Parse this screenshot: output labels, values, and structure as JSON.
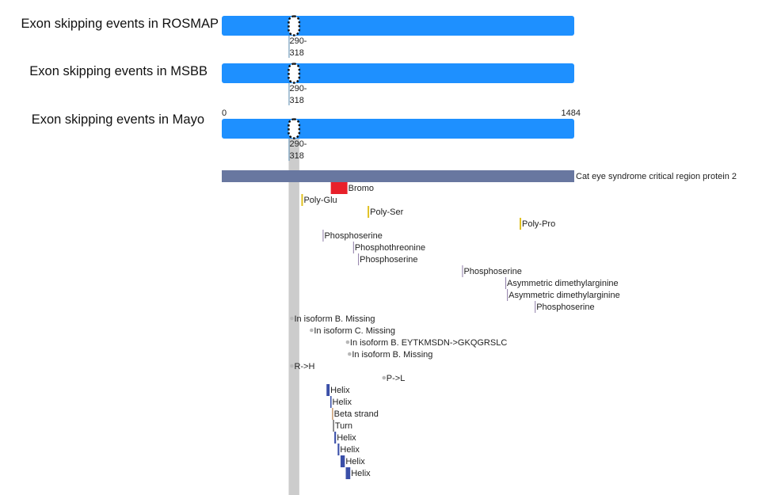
{
  "tracks": [
    {
      "title": "Exon skipping events in ROSMAP",
      "event": {
        "start": 290,
        "end": 318,
        "label_top": "290-",
        "label_bottom": "318"
      }
    },
    {
      "title": "Exon skipping events in MSBB",
      "event": {
        "start": 290,
        "end": 318,
        "label_top": "290-",
        "label_bottom": "318"
      }
    },
    {
      "title": "Exon skipping events in Mayo",
      "event": {
        "start": 290,
        "end": 318,
        "label_top": "290-",
        "label_bottom": "318"
      }
    }
  ],
  "axis": {
    "min": 0,
    "max": 1484,
    "min_label": "0",
    "max_label": "1484"
  },
  "protein": {
    "name": "Cat eye syndrome critical region protein 2",
    "length": 1484
  },
  "colors": {
    "track_bar": "#1e90ff",
    "protein_bar": "#6877a0",
    "highlight": "#cccccc",
    "domain": "#e8202a",
    "region": "#e0c020",
    "modified": "#8c7aa6",
    "variant_dot": "#b8b8b8",
    "helix": "#3a4fa8",
    "strand": "#c89a6e",
    "turn": "#6a6a6a"
  },
  "features": [
    {
      "label": "Bromo",
      "start": 459,
      "end": 529,
      "kind": "domain"
    },
    {
      "label": "Poly-Glu",
      "start": 335,
      "end": 338,
      "kind": "region"
    },
    {
      "label": "Poly-Ser",
      "start": 614,
      "end": 617,
      "kind": "region"
    },
    {
      "label": "Poly-Pro",
      "start": 1254,
      "end": 1257,
      "kind": "region"
    },
    {
      "label": "Phosphoserine",
      "start": 425,
      "end": 425,
      "kind": "modified"
    },
    {
      "label": "Phosphothreonine",
      "start": 553,
      "end": 553,
      "kind": "modified"
    },
    {
      "label": "Phosphoserine",
      "start": 574,
      "end": 574,
      "kind": "modified"
    },
    {
      "label": "Phosphoserine",
      "start": 1012,
      "end": 1012,
      "kind": "modified"
    },
    {
      "label": "Asymmetric dimethylarginine",
      "start": 1194,
      "end": 1194,
      "kind": "modified"
    },
    {
      "label": "Asymmetric dimethylarginine",
      "start": 1201,
      "end": 1201,
      "kind": "modified"
    },
    {
      "label": "Phosphoserine",
      "start": 1318,
      "end": 1318,
      "kind": "modified"
    },
    {
      "label": "In isoform B. Missing",
      "start": 295,
      "end": 295,
      "kind": "variant"
    },
    {
      "label": "In isoform C. Missing",
      "start": 378,
      "end": 378,
      "kind": "variant"
    },
    {
      "label": "In isoform B. EYTKMSDN->GKQGRSLC",
      "start": 530,
      "end": 530,
      "kind": "variant"
    },
    {
      "label": "In isoform B. Missing",
      "start": 538,
      "end": 538,
      "kind": "variant"
    },
    {
      "label": "R->H",
      "start": 295,
      "end": 295,
      "kind": "variant"
    },
    {
      "label": "P->L",
      "start": 683,
      "end": 683,
      "kind": "variant"
    },
    {
      "label": "Helix",
      "start": 441,
      "end": 454,
      "kind": "helix"
    },
    {
      "label": "Helix",
      "start": 457,
      "end": 461,
      "kind": "helix"
    },
    {
      "label": "Beta strand",
      "start": 464,
      "end": 467,
      "kind": "strand"
    },
    {
      "label": "Turn",
      "start": 468,
      "end": 471,
      "kind": "turn"
    },
    {
      "label": "Helix",
      "start": 474,
      "end": 481,
      "kind": "helix"
    },
    {
      "label": "Helix",
      "start": 488,
      "end": 495,
      "kind": "helix"
    },
    {
      "label": "Helix",
      "start": 500,
      "end": 518,
      "kind": "helix"
    },
    {
      "label": "Helix",
      "start": 522,
      "end": 541,
      "kind": "helix"
    }
  ]
}
